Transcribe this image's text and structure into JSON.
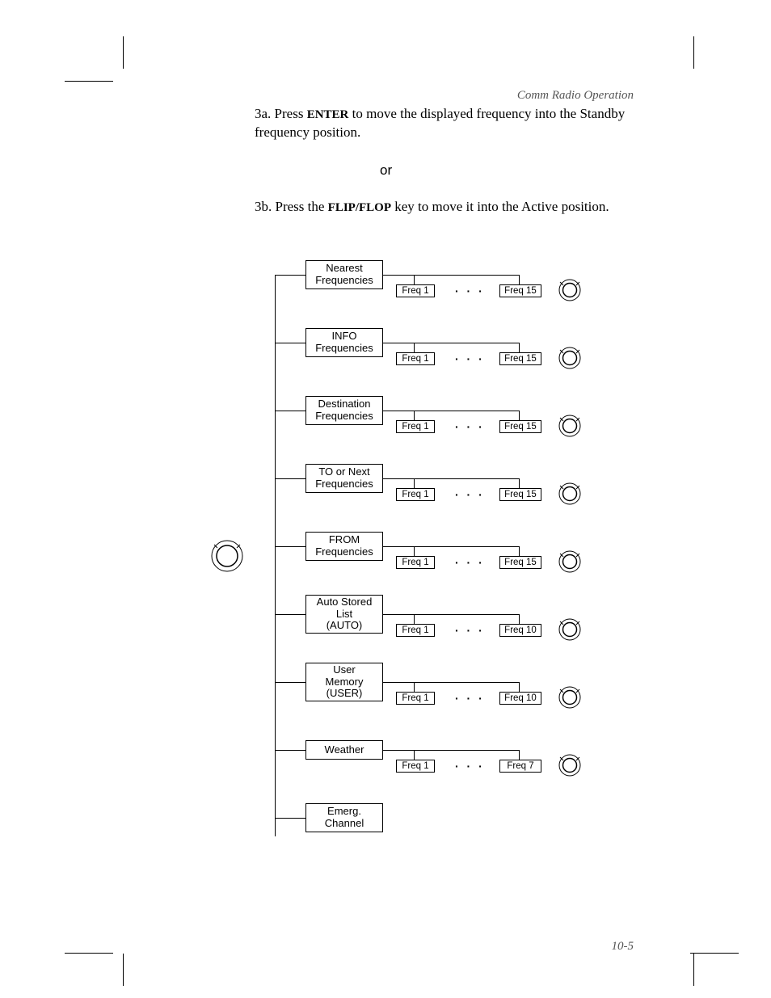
{
  "header": "Comm Radio Operation",
  "footer": "10-5",
  "step_3a_prefix": "3a. Press ",
  "step_3a_key": "ENTER",
  "step_3a_suffix": " to move the displayed frequency into the Standby frequency position.",
  "or_label": "or",
  "step_3b_prefix": "3b. Press the ",
  "step_3b_key": "FLIP/FLOP",
  "step_3b_suffix": " key to move it into the Active position.",
  "rows": [
    {
      "line1": "Nearest",
      "line2": "Frequencies",
      "line3": "",
      "f1": "Freq 1",
      "fN": "Freq 15",
      "knob": true
    },
    {
      "line1": "INFO",
      "line2": "Frequencies",
      "line3": "",
      "f1": "Freq 1",
      "fN": "Freq 15",
      "knob": true
    },
    {
      "line1": "Destination",
      "line2": "Frequencies",
      "line3": "",
      "f1": "Freq 1",
      "fN": "Freq 15",
      "knob": true
    },
    {
      "line1": "TO or Next",
      "line2": "Frequencies",
      "line3": "",
      "f1": "Freq 1",
      "fN": "Freq 15",
      "knob": true
    },
    {
      "line1": "FROM",
      "line2": "Frequencies",
      "line3": "",
      "f1": "Freq 1",
      "fN": "Freq 15",
      "knob": true
    },
    {
      "line1": "Auto Stored",
      "line2": "List",
      "line3": "(AUTO)",
      "f1": "Freq 1",
      "fN": "Freq 10",
      "knob": true
    },
    {
      "line1": "User",
      "line2": "Memory",
      "line3": "(USER)",
      "f1": "Freq 1",
      "fN": "Freq 10",
      "knob": true
    },
    {
      "line1": "Weather",
      "line2": "",
      "line3": "",
      "f1": "Freq 1",
      "fN": "Freq 7",
      "knob": true
    },
    {
      "line1": "Emerg.",
      "line2": "Channel",
      "line3": "",
      "f1": "",
      "fN": "",
      "knob": false
    }
  ],
  "dots": "· · ·",
  "colors": {
    "text": "#000000",
    "bg": "#ffffff",
    "header": "#555555"
  }
}
